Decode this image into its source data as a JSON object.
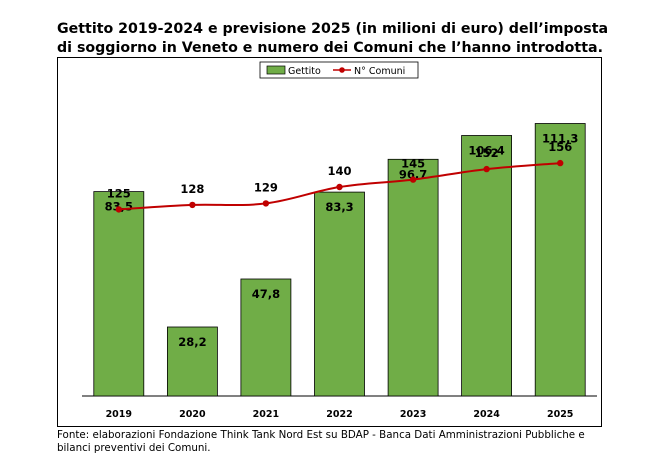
{
  "title_lines": [
    "Gettito 2019-2024 e previsione 2025 (in milioni di euro) dell’imposta",
    "di soggiorno in Veneto e numero dei Comuni che l’hanno introdotta."
  ],
  "source_lines": [
    "Fonte: elaborazioni Fondazione Think Tank Nord Est su BDAP - Banca Dati Amministrazioni Pubbliche e",
    "bilanci preventivi dei Comuni."
  ],
  "colors": {
    "bar_fill": "#70ad47",
    "bar_stroke": "#000000",
    "line": "#c00000"
  },
  "chart_data": {
    "type": "bar",
    "categories": [
      "2019",
      "2020",
      "2021",
      "2022",
      "2023",
      "2024",
      "2025"
    ],
    "series": [
      {
        "name": "Gettito",
        "type": "bar",
        "values": [
          83.5,
          28.2,
          47.8,
          83.3,
          96.7,
          106.4,
          111.3
        ],
        "labels": [
          "83,5",
          "28,2",
          "47,8",
          "83,3",
          "96,7",
          "106,4",
          "111,3"
        ]
      },
      {
        "name": "N° Comuni",
        "type": "line",
        "values": [
          125,
          128,
          129,
          140,
          145,
          152,
          156
        ],
        "labels": [
          "125",
          "128",
          "129",
          "140",
          "145",
          "152",
          "156"
        ]
      }
    ],
    "title": "",
    "xlabel": "",
    "ylabel": "",
    "ylim": [
      0,
      125
    ],
    "y2lim": [
      0,
      205
    ],
    "grid": false,
    "legend": "top-center"
  }
}
